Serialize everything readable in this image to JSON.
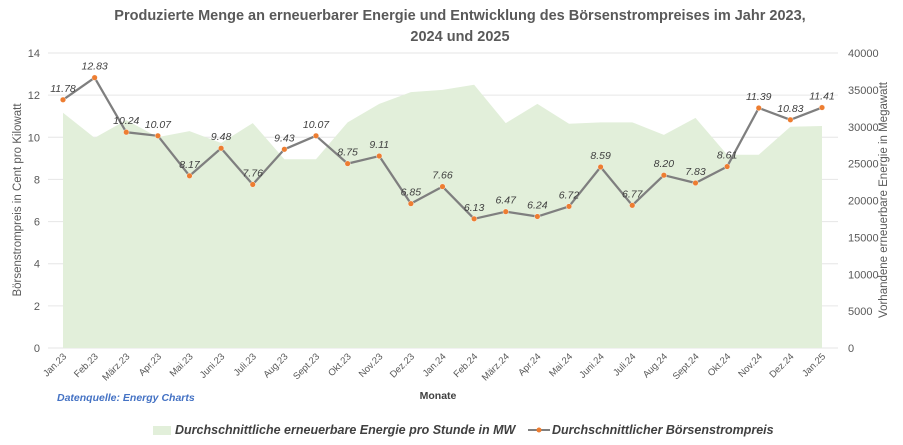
{
  "chart_data": {
    "type": "area+line",
    "title": "Produzierte Menge an erneuerbarer Energie und Entwicklung des Börsenstrompreises im Jahr 2023, 2024 und 2025",
    "xlabel": "Monate",
    "ylabel_left": "Börsenstrompreis in Cent pro Kilowatt",
    "ylabel_right": "Vorhandene erneuerbare Energie in Megawatt",
    "ylim_left": [
      0,
      14
    ],
    "yticks_left": [
      "0",
      "2",
      "4",
      "6",
      "8",
      "10",
      "12",
      "14"
    ],
    "ylim_right": [
      0,
      40000
    ],
    "yticks_right": [
      "0",
      "5000",
      "10000",
      "15000",
      "20000",
      "25000",
      "30000",
      "35000",
      "40000"
    ],
    "grid": true,
    "legend_position": "bottom",
    "categories": [
      "Jan.23",
      "Feb.23",
      "März.23",
      "Apr.23",
      "Mai.23",
      "Juni.23",
      "Juli.23",
      "Aug.23",
      "Sept.23",
      "Okt.23",
      "Nov.23",
      "Dez.23",
      "Jan.24",
      "Feb.24",
      "März.24",
      "Apr.24",
      "Mai.24",
      "Juni.24",
      "Juli.24",
      "Aug.24",
      "Sept.24",
      "Okt.24",
      "Nov.24",
      "Dez.24",
      "Jan.25"
    ],
    "series": [
      {
        "name": "Durchschnittliche erneuerbare Energie pro Stunde in MW",
        "type": "area",
        "axis": "right",
        "color": "#E2EFDA",
        "values": [
          31900,
          28500,
          30900,
          28600,
          29400,
          27800,
          30500,
          25600,
          25600,
          30600,
          33100,
          34700,
          35000,
          35700,
          30500,
          33100,
          30400,
          30600,
          30600,
          28900,
          31200,
          26200,
          26200,
          30000,
          30100
        ]
      },
      {
        "name": "Durchschnittlicher Börsenstrompreis",
        "type": "line",
        "axis": "left",
        "color": "#7F7F7F",
        "marker_color": "#ED7D31",
        "values": [
          11.78,
          12.83,
          10.24,
          10.07,
          8.17,
          9.48,
          7.76,
          9.43,
          10.07,
          8.75,
          9.11,
          6.85,
          7.66,
          6.13,
          6.47,
          6.24,
          6.72,
          8.59,
          6.77,
          8.2,
          7.83,
          8.61,
          11.39,
          10.83,
          11.41
        ],
        "labels": [
          "11.78",
          "12.83",
          "10.24",
          "10.07",
          "8.17",
          "9.48",
          "7.76",
          "9.43",
          "10.07",
          "8.75",
          "9.11",
          "6.85",
          "7.66",
          "6.13",
          "6.47",
          "6.24",
          "6.72",
          "8.59",
          "6.77",
          "8.20",
          "7.83",
          "8.61",
          "11.39",
          "10.83",
          "11.41"
        ]
      }
    ]
  },
  "source_note": "Datenquelle: Energy Charts"
}
